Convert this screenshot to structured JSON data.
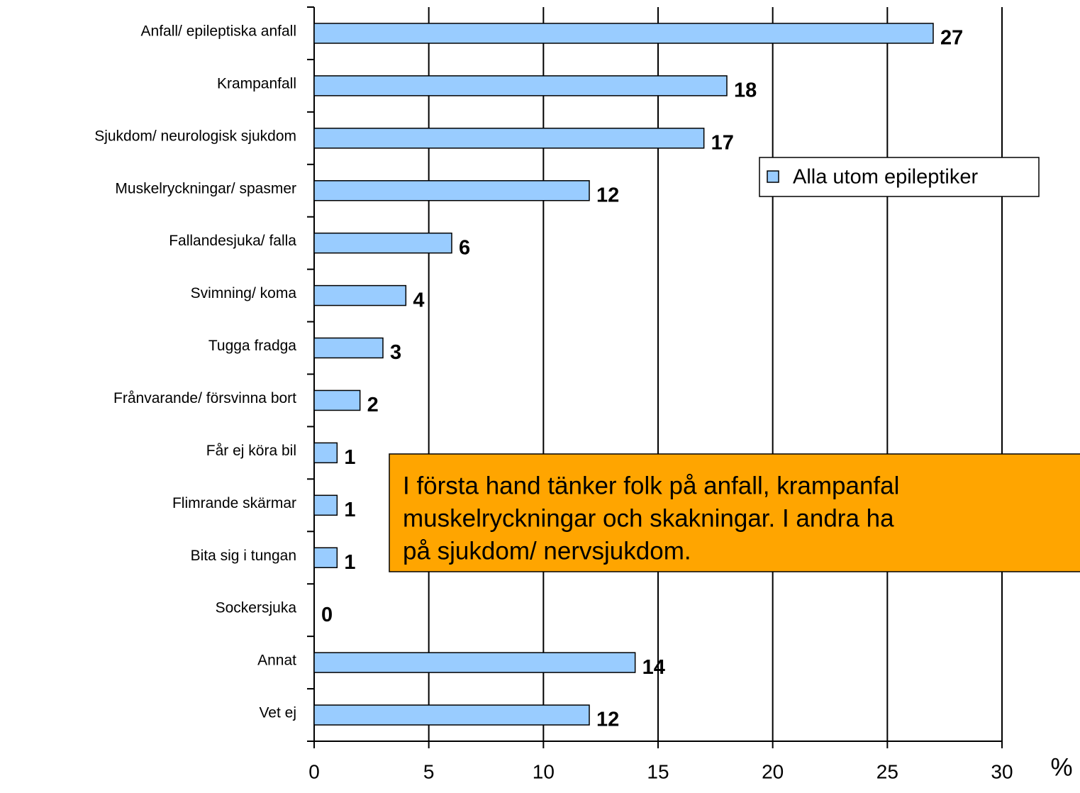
{
  "chart_data": {
    "type": "barh",
    "categories": [
      "Anfall/ epileptiska anfall",
      "Krampanfall",
      "Sjukdom/ neurologisk sjukdom",
      "Muskelryckningar/ spasmer",
      "Fallandesjuka/ falla",
      "Svimning/ koma",
      "Tugga fradga",
      "Frånvarande/ försvinna bort",
      "Får ej köra bil",
      "Flimrande skärmar",
      "Bita sig i tungan",
      "Sockersjuka",
      "Annat",
      "Vet ej"
    ],
    "series": [
      {
        "name": "Alla utom epileptiker",
        "color": "#99ccff",
        "values": [
          27,
          18,
          17,
          12,
          6,
          4,
          3,
          2,
          1,
          1,
          1,
          0,
          14,
          12
        ]
      }
    ],
    "xlim": [
      0,
      30
    ],
    "xticks": [
      0,
      5,
      10,
      15,
      20,
      25,
      30
    ],
    "grid": true,
    "xlabel": "%",
    "annotation": [
      "I första hand tänker folk på anfall, krampanfal",
      "muskelryckningar och skakningar. I andra ha",
      "på sjukdom/ nervsjukdom."
    ],
    "annotation_color": "#ffa500"
  }
}
